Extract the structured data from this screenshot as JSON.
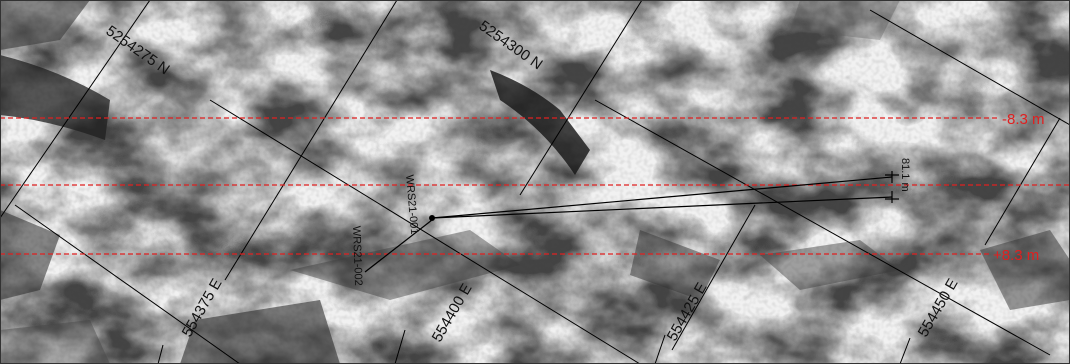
{
  "map": {
    "northing_labels": [
      "5254275 N",
      "5254300 N"
    ],
    "easting_labels": [
      "554375 E",
      "554400 E",
      "554425 E",
      "554450 E"
    ],
    "offset_labels": {
      "upper": "-8.3 m",
      "lower": "+8.3 m"
    },
    "drillholes": [
      {
        "name": "WRS21-001"
      },
      {
        "name": "WRS21-002"
      }
    ],
    "measure_label": "81.1 m",
    "colors": {
      "offset_line": "#e02020",
      "grid_line": "#000000",
      "border": "#333333"
    }
  }
}
